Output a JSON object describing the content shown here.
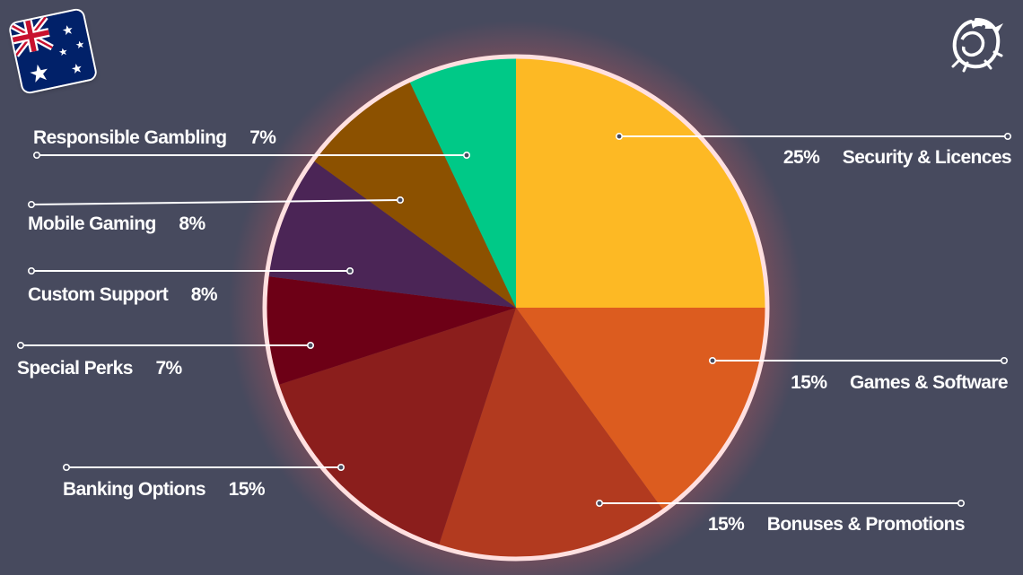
{
  "chart_data": {
    "type": "pie",
    "title": "",
    "slices": [
      {
        "label": "Security &  Licences",
        "value": 25,
        "value_text": "25%",
        "color": "#fdb924"
      },
      {
        "label": "Games & Software",
        "value": 15,
        "value_text": "15%",
        "color": "#dc5c1f"
      },
      {
        "label": "Bonuses & Promotions",
        "value": 15,
        "value_text": "15%",
        "color": "#b23a1f"
      },
      {
        "label": "Banking Options",
        "value": 15,
        "value_text": "15%",
        "color": "#8b1e1c"
      },
      {
        "label": "Special Perks",
        "value": 7,
        "value_text": "7%",
        "color": "#6d0016"
      },
      {
        "label": "Custom Support",
        "value": 8,
        "value_text": "8%",
        "color": "#4b2556"
      },
      {
        "label": "Mobile Gaming",
        "value": 8,
        "value_text": "8%",
        "color": "#8c5100"
      },
      {
        "label": "Responsible Gambling",
        "value": 7,
        "value_text": "7%",
        "color": "#00c987"
      }
    ],
    "colors": {
      "background": "#474a5e",
      "pie_border": "#ffe0e0",
      "glow": "#ff5a5a"
    }
  },
  "icons": {
    "flag": "australia-flag-icon",
    "logo": "dragon-logo-icon"
  }
}
